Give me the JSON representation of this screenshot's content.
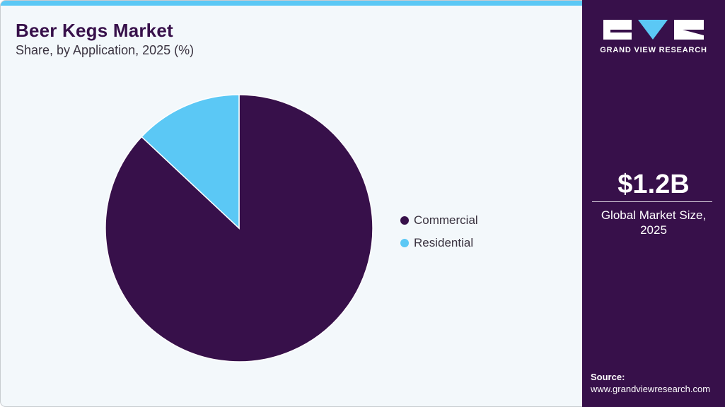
{
  "header": {
    "title": "Beer Kegs Market",
    "subtitle": "Share, by Application, 2025 (%)"
  },
  "legend": {
    "items": [
      {
        "label": "Commercial",
        "color": "#37104a"
      },
      {
        "label": "Residential",
        "color": "#5bc8f5"
      }
    ]
  },
  "sidebar": {
    "brand": "GRAND VIEW RESEARCH",
    "market_size": "$1.2B",
    "market_size_caption_line1": "Global Market Size,",
    "market_size_caption_line2": "2025",
    "source_label": "Source:",
    "source_url": "www.grandviewresearch.com"
  },
  "colors": {
    "accent_dark": "#37104a",
    "accent_light": "#5bc8f5",
    "background": "#f3f8fb"
  },
  "chart_data": {
    "type": "pie",
    "title": "Beer Kegs Market",
    "subtitle": "Share, by Application, 2025 (%)",
    "categories": [
      "Commercial",
      "Residential"
    ],
    "values": [
      87,
      13
    ],
    "colors": [
      "#37104a",
      "#5bc8f5"
    ],
    "start_angle": "12 o'clock, Residential drawn counter-clockwise from top",
    "legend_position": "right",
    "data_labels": false
  }
}
